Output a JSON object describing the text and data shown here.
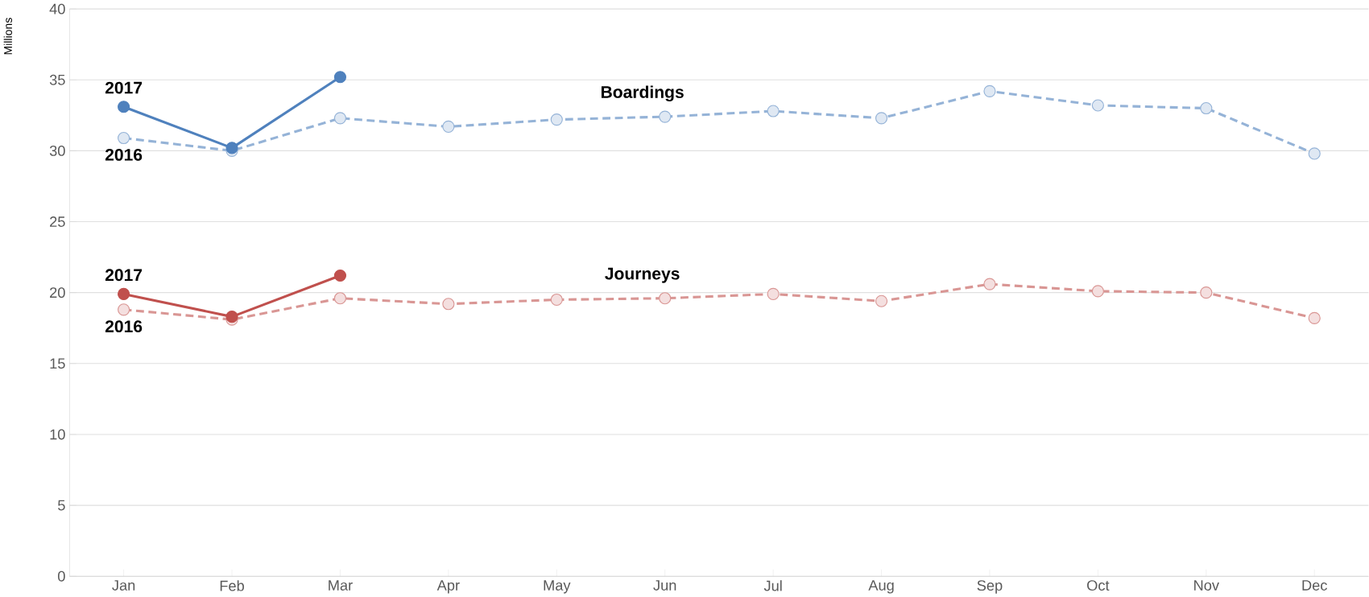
{
  "chart_data": {
    "type": "line",
    "ylabel": "Millions",
    "categories": [
      "Jan",
      "Feb",
      "Mar",
      "Apr",
      "May",
      "Jun",
      "Jul",
      "Aug",
      "Sep",
      "Oct",
      "Nov",
      "Dec"
    ],
    "series": [
      {
        "name": "2017",
        "color": "#4f81bd",
        "line_style": "solid",
        "values": [
          33.1,
          30.2,
          35.2,
          null,
          null,
          null,
          null,
          null,
          null,
          null,
          null,
          null
        ]
      },
      {
        "name": "2016",
        "color": "#95b3d7",
        "line_style": "dashed",
        "values": [
          30.9,
          30.0,
          32.3,
          31.7,
          32.2,
          32.4,
          32.8,
          32.3,
          34.2,
          33.2,
          33.0,
          29.8
        ]
      },
      {
        "name": "2017",
        "color": "#c0504d",
        "line_style": "solid",
        "values": [
          19.9,
          18.3,
          21.2,
          null,
          null,
          null,
          null,
          null,
          null,
          null,
          null,
          null
        ]
      },
      {
        "name": "2016",
        "color": "#d99694",
        "line_style": "dashed",
        "values": [
          18.8,
          18.1,
          19.6,
          19.2,
          19.5,
          19.6,
          19.9,
          19.4,
          20.6,
          20.1,
          20.0,
          18.2
        ]
      }
    ],
    "annotations": [
      {
        "text": "Boardings",
        "x": "Jun",
        "y": 32.4
      },
      {
        "text": "Journeys",
        "x": "Jun",
        "y": 19.6
      }
    ],
    "ylim": [
      0,
      40
    ],
    "yticks": [
      0,
      5,
      10,
      15,
      20,
      25,
      30,
      35,
      40
    ],
    "grid": "y",
    "legend": false,
    "marker": "circle"
  }
}
